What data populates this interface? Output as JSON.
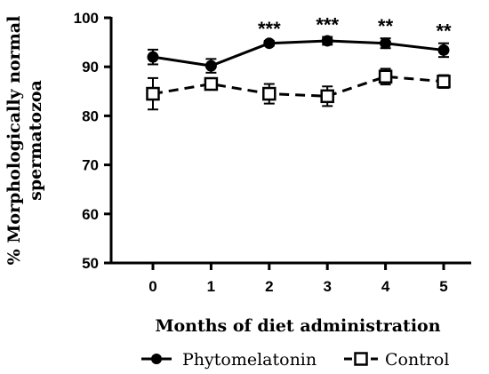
{
  "chart_data": {
    "type": "line",
    "xlabel": "Months of diet administration",
    "ylabel_lines": [
      "% Morphologically normal",
      "spermatozoa"
    ],
    "x": [
      0,
      1,
      2,
      3,
      4,
      5
    ],
    "x_ticks": [
      "0",
      "1",
      "2",
      "3",
      "4",
      "5"
    ],
    "ylim": [
      50,
      100
    ],
    "y_ticks": [
      "50",
      "60",
      "70",
      "80",
      "90",
      "100"
    ],
    "grid": false,
    "legend_position": "bottom",
    "series": [
      {
        "name": "Phytomelatonin",
        "marker": "filled-circle",
        "line_style": "solid",
        "color": "#000000",
        "values": [
          92.0,
          90.2,
          94.8,
          95.3,
          94.8,
          93.4
        ],
        "errors": [
          1.5,
          1.4,
          0.5,
          0.8,
          1.0,
          1.4
        ]
      },
      {
        "name": "Control",
        "marker": "open-square",
        "line_style": "dashed",
        "color": "#000000",
        "values": [
          84.5,
          86.5,
          84.5,
          84.0,
          88.0,
          87.0
        ],
        "errors": [
          3.2,
          0.8,
          2.0,
          2.0,
          1.6,
          1.3
        ]
      }
    ],
    "annotations": [
      {
        "x": 2,
        "text": "***"
      },
      {
        "x": 3,
        "text": "***"
      },
      {
        "x": 4,
        "text": "**"
      },
      {
        "x": 5,
        "text": "**"
      }
    ]
  }
}
